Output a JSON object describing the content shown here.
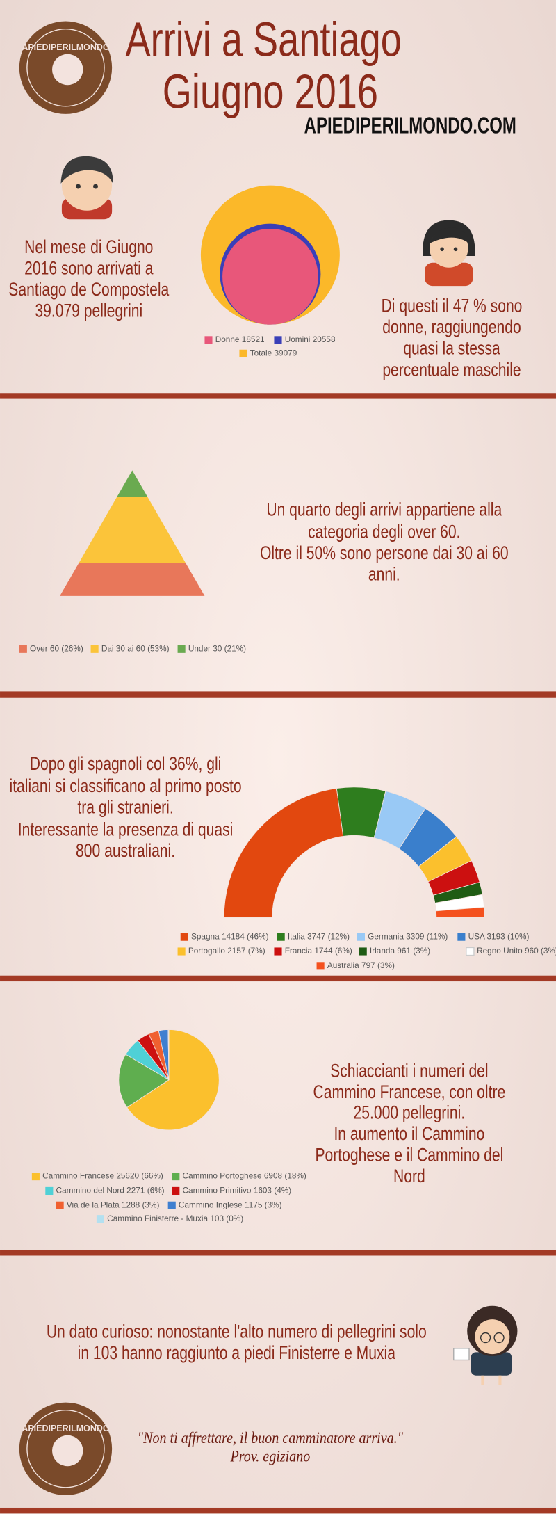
{
  "header": {
    "title": [
      "Arrivi a Santiago",
      "Giugno 2016"
    ],
    "site": "APIEDIPERILMONDO.COM",
    "logo": "APIEDIPERILMONDO"
  },
  "sections": [
    {
      "text": [
        "Nel mese di Giugno",
        "2016 sono arrivati a",
        "Santiago de Compostela",
        "39.079 pellegrini"
      ],
      "text2": [
        "Di questi il 47 % sono",
        "donne,  raggiungendo",
        "quasi la stessa",
        "percentuale maschile"
      ]
    },
    {
      "text": [
        "Un quarto degli arrivi appartiene alla",
        "categoria degli over 60.",
        "Oltre il 50% sono persone dai 30 ai 60",
        "anni."
      ]
    },
    {
      "text": [
        "Dopo gli spagnoli col 36%, gli",
        "italiani si classificano al primo posto",
        "tra gli stranieri.",
        "Interessante la presenza di quasi",
        "800 australiani."
      ]
    },
    {
      "text": [
        "Schiaccianti i numeri del",
        "Cammino Francese, con oltre",
        "25.000 pellegrini.",
        "In aumento il Cammino",
        "Portoghese e il Cammino del",
        "Nord"
      ]
    },
    {
      "text": [
        "Un dato curioso: nonostante l'alto numero di pellegrini solo",
        "in 103 hanno raggiunto a piedi Finisterre e Muxia"
      ],
      "quote": "\"Non ti affrettare, il buon camminatore arriva.\"",
      "source": "Prov. egiziano"
    }
  ],
  "chart_data": [
    {
      "type": "nested-circles",
      "categories": [
        "Donne 18521",
        "Uomini 20558",
        "Totale 39079"
      ],
      "values": [
        18521,
        20558,
        39079
      ],
      "colors": [
        "#e8577a",
        "#3a3fb8",
        "#fbb829"
      ]
    },
    {
      "type": "pyramid",
      "categories": [
        "Over 60 (26%)",
        "Dai 30 ai 60 (53%)",
        "Under 30 (21%)"
      ],
      "values": [
        26,
        53,
        21
      ],
      "colors": [
        "#e8775a",
        "#fbc43a",
        "#6aaa50"
      ]
    },
    {
      "type": "semi-donut",
      "categories": [
        "Spagna 14184 (46%)",
        "Italia 3747 (12%)",
        "Germania 3309 (11%)",
        "USA 3193 (10%)",
        "Portogallo 2157 (7%)",
        "Francia 1744 (6%)",
        "Irlanda 961 (3%)",
        "Regno Unito 960 (3%)",
        "Australia 797 (3%)"
      ],
      "values": [
        14184,
        3747,
        3309,
        3193,
        2157,
        1744,
        961,
        960,
        797
      ],
      "colors": [
        "#e2480f",
        "#2e7d1e",
        "#99c9f5",
        "#3a7fcc",
        "#fbc02d",
        "#cc1010",
        "#1f5c14",
        "#ffffff",
        "#f4511e"
      ]
    },
    {
      "type": "pie",
      "categories": [
        "Cammino Francese 25620 (66%)",
        "Cammino Portoghese 6908 (18%)",
        "Cammino del Nord 2271 (6%)",
        "Cammino Primitivo 1603 (4%)",
        "Via de la Plata 1288 (3%)",
        "Cammino Inglese 1175 (3%)",
        "Cammino Finisterre - Muxia 103 (0%)"
      ],
      "values": [
        25620,
        6908,
        2271,
        1603,
        1288,
        1175,
        103
      ],
      "colors": [
        "#fbc02d",
        "#5fae4f",
        "#4fd0d6",
        "#cc1010",
        "#f06030",
        "#3f7fd0",
        "#b3e0f0"
      ]
    }
  ]
}
